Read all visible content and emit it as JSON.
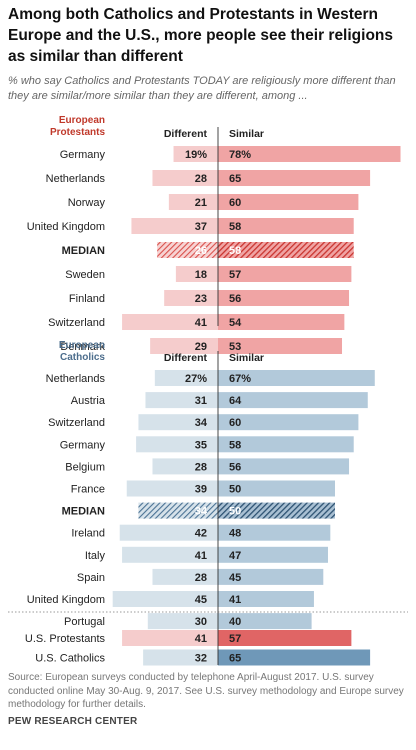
{
  "title": "Among both Catholics and Protestants in Western Europe and the U.S., more people see their religions as similar than different",
  "subtitle": "% who say Catholics and Protestants TODAY are religiously more different than they are similar/more similar than they are different, among ...",
  "source": "Source: European surveys conducted by telephone April-August 2017. U.S. survey conducted online May 30-Aug. 9, 2017. See U.S. survey methodology and Europe survey methodology for further details.",
  "credit": "PEW RESEARCH CENTER",
  "colors": {
    "protestant_light": "#f5cccc",
    "protestant_dark": "#f0a4a4",
    "protestant_median": "#c93530",
    "protestant_us": "#e06565",
    "catholic_light": "#d6e2ea",
    "catholic_dark": "#b2c9da",
    "catholic_median": "#2d5272",
    "catholic_us": "#6f98b8",
    "protestant_heading": "#c0392b",
    "catholic_heading": "#4c6d8c"
  },
  "chart_data": {
    "type": "bar",
    "series": [
      {
        "name": "Different",
        "unit": "%"
      },
      {
        "name": "Similar",
        "unit": "%"
      }
    ],
    "groups": [
      {
        "heading": [
          "European",
          "Protestants"
        ],
        "rows": [
          {
            "label": "Germany",
            "different": "19%",
            "similar": "78%",
            "different_value": 19,
            "similar_value": 78
          },
          {
            "label": "Netherlands",
            "different": "28",
            "similar": "65",
            "different_value": 28,
            "similar_value": 65
          },
          {
            "label": "Norway",
            "different": "21",
            "similar": "60",
            "different_value": 21,
            "similar_value": 60
          },
          {
            "label": "United Kingdom",
            "different": "37",
            "similar": "58",
            "different_value": 37,
            "similar_value": 58
          },
          {
            "label": "MEDIAN",
            "different": "26",
            "similar": "58",
            "different_value": 26,
            "similar_value": 58,
            "median": true
          },
          {
            "label": "Sweden",
            "different": "18",
            "similar": "57",
            "different_value": 18,
            "similar_value": 57
          },
          {
            "label": "Finland",
            "different": "23",
            "similar": "56",
            "different_value": 23,
            "similar_value": 56
          },
          {
            "label": "Switzerland",
            "different": "41",
            "similar": "54",
            "different_value": 41,
            "similar_value": 54
          },
          {
            "label": "Denmark",
            "different": "29",
            "similar": "53",
            "different_value": 29,
            "similar_value": 53
          }
        ]
      },
      {
        "heading": [
          "European",
          "Catholics"
        ],
        "rows": [
          {
            "label": "Netherlands",
            "different": "27%",
            "similar": "67%",
            "different_value": 27,
            "similar_value": 67
          },
          {
            "label": "Austria",
            "different": "31",
            "similar": "64",
            "different_value": 31,
            "similar_value": 64
          },
          {
            "label": "Switzerland",
            "different": "34",
            "similar": "60",
            "different_value": 34,
            "similar_value": 60
          },
          {
            "label": "Germany",
            "different": "35",
            "similar": "58",
            "different_value": 35,
            "similar_value": 58
          },
          {
            "label": "Belgium",
            "different": "28",
            "similar": "56",
            "different_value": 28,
            "similar_value": 56
          },
          {
            "label": "France",
            "different": "39",
            "similar": "50",
            "different_value": 39,
            "similar_value": 50
          },
          {
            "label": "MEDIAN",
            "different": "34",
            "similar": "50",
            "different_value": 34,
            "similar_value": 50,
            "median": true
          },
          {
            "label": "Ireland",
            "different": "42",
            "similar": "48",
            "different_value": 42,
            "similar_value": 48
          },
          {
            "label": "Italy",
            "different": "41",
            "similar": "47",
            "different_value": 41,
            "similar_value": 47
          },
          {
            "label": "Spain",
            "different": "28",
            "similar": "45",
            "different_value": 28,
            "similar_value": 45
          },
          {
            "label": "United Kingdom",
            "different": "45",
            "similar": "41",
            "different_value": 45,
            "similar_value": 41
          },
          {
            "label": "Portugal",
            "different": "30",
            "similar": "40",
            "different_value": 30,
            "similar_value": 40
          }
        ]
      }
    ],
    "us_rows": [
      {
        "label": "U.S. Protestants",
        "different": "41",
        "similar": "57",
        "different_value": 41,
        "similar_value": 57,
        "group": "protestant"
      },
      {
        "label": "U.S. Catholics",
        "different": "32",
        "similar": "65",
        "different_value": 32,
        "similar_value": 65,
        "group": "catholic"
      }
    ]
  }
}
